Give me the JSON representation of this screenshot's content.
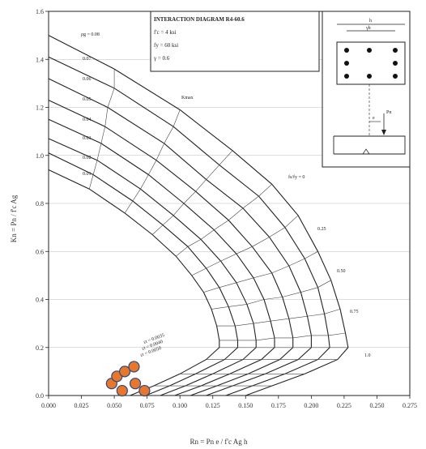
{
  "chart_data": {
    "type": "line",
    "title": "INTERACTION DIAGRAM R4-60.6",
    "legend_lines": [
      "f'c = 4 ksi",
      "fy = 60 ksi",
      "γ = 0.6"
    ],
    "xlabel": "Rn = Pn e / f'c Ag h",
    "ylabel": "Kn = Pn / f'c Ag",
    "x_ticks": [
      "0.000",
      "0.025",
      "0.050",
      "0.075",
      "0.100",
      "0.125",
      "0.150",
      "0.175",
      "0.200",
      "0.225",
      "0.250",
      "0.275"
    ],
    "y_ticks": [
      "0.0",
      "0.2",
      "0.4",
      "0.6",
      "0.8",
      "1.0",
      "1.2",
      "1.4",
      "1.6"
    ],
    "xlim": [
      0,
      0.275
    ],
    "ylim": [
      0,
      1.6
    ],
    "grid": true,
    "series": [
      {
        "name": "ρg = 0.08",
        "values": [
          [
            0,
            1.5
          ],
          [
            0.05,
            1.36
          ],
          [
            0.1,
            1.19
          ],
          [
            0.14,
            1.02
          ],
          [
            0.17,
            0.88
          ],
          [
            0.19,
            0.75
          ],
          [
            0.205,
            0.6
          ],
          [
            0.215,
            0.48
          ],
          [
            0.222,
            0.36
          ],
          [
            0.226,
            0.26
          ],
          [
            0.228,
            0.2
          ],
          [
            0.22,
            0.15
          ],
          [
            0.195,
            0.09
          ],
          [
            0.17,
            0.04
          ],
          [
            0.15,
            0
          ]
        ]
      },
      {
        "name": "",
        "values": [
          [
            0,
            1.41
          ],
          [
            0.05,
            1.28
          ],
          [
            0.095,
            1.12
          ],
          [
            0.13,
            0.96
          ],
          [
            0.16,
            0.83
          ],
          [
            0.18,
            0.7
          ],
          [
            0.195,
            0.57
          ],
          [
            0.205,
            0.45
          ],
          [
            0.21,
            0.34
          ],
          [
            0.213,
            0.25
          ],
          [
            0.214,
            0.2
          ],
          [
            0.205,
            0.15
          ],
          [
            0.18,
            0.09
          ],
          [
            0.155,
            0.04
          ],
          [
            0.135,
            0
          ]
        ]
      },
      {
        "name": "",
        "values": [
          [
            0,
            1.32
          ],
          [
            0.045,
            1.2
          ],
          [
            0.088,
            1.05
          ],
          [
            0.12,
            0.9
          ],
          [
            0.148,
            0.78
          ],
          [
            0.168,
            0.66
          ],
          [
            0.183,
            0.54
          ],
          [
            0.192,
            0.43
          ],
          [
            0.197,
            0.33
          ],
          [
            0.2,
            0.25
          ],
          [
            0.2,
            0.2
          ],
          [
            0.19,
            0.15
          ],
          [
            0.165,
            0.09
          ],
          [
            0.14,
            0.04
          ],
          [
            0.12,
            0
          ]
        ]
      },
      {
        "name": "",
        "values": [
          [
            0,
            1.23
          ],
          [
            0.043,
            1.12
          ],
          [
            0.082,
            0.98
          ],
          [
            0.112,
            0.85
          ],
          [
            0.137,
            0.73
          ],
          [
            0.155,
            0.62
          ],
          [
            0.17,
            0.51
          ],
          [
            0.178,
            0.41
          ],
          [
            0.183,
            0.32
          ],
          [
            0.186,
            0.24
          ],
          [
            0.186,
            0.2
          ],
          [
            0.176,
            0.15
          ],
          [
            0.152,
            0.09
          ],
          [
            0.128,
            0.04
          ],
          [
            0.108,
            0
          ]
        ]
      },
      {
        "name": "",
        "values": [
          [
            0,
            1.15
          ],
          [
            0.04,
            1.05
          ],
          [
            0.076,
            0.92
          ],
          [
            0.103,
            0.8
          ],
          [
            0.126,
            0.69
          ],
          [
            0.143,
            0.59
          ],
          [
            0.156,
            0.49
          ],
          [
            0.164,
            0.4
          ],
          [
            0.169,
            0.31
          ],
          [
            0.172,
            0.24
          ],
          [
            0.172,
            0.2
          ],
          [
            0.162,
            0.15
          ],
          [
            0.138,
            0.09
          ],
          [
            0.116,
            0.04
          ],
          [
            0.096,
            0
          ]
        ]
      },
      {
        "name": "",
        "values": [
          [
            0,
            1.07
          ],
          [
            0.037,
            0.98
          ],
          [
            0.07,
            0.86
          ],
          [
            0.095,
            0.75
          ],
          [
            0.116,
            0.65
          ],
          [
            0.131,
            0.56
          ],
          [
            0.143,
            0.47
          ],
          [
            0.151,
            0.38
          ],
          [
            0.156,
            0.3
          ],
          [
            0.158,
            0.23
          ],
          [
            0.158,
            0.2
          ],
          [
            0.148,
            0.15
          ],
          [
            0.125,
            0.09
          ],
          [
            0.104,
            0.04
          ],
          [
            0.085,
            0
          ]
        ]
      },
      {
        "name": "",
        "values": [
          [
            0,
            1.01
          ],
          [
            0.034,
            0.92
          ],
          [
            0.064,
            0.81
          ],
          [
            0.087,
            0.71
          ],
          [
            0.106,
            0.62
          ],
          [
            0.12,
            0.53
          ],
          [
            0.13,
            0.45
          ],
          [
            0.137,
            0.37
          ],
          [
            0.142,
            0.29
          ],
          [
            0.144,
            0.23
          ],
          [
            0.144,
            0.2
          ],
          [
            0.134,
            0.15
          ],
          [
            0.112,
            0.09
          ],
          [
            0.092,
            0.04
          ],
          [
            0.074,
            0
          ]
        ]
      },
      {
        "name": "ρg = 0.01",
        "values": [
          [
            0,
            0.94
          ],
          [
            0.031,
            0.86
          ],
          [
            0.058,
            0.76
          ],
          [
            0.079,
            0.67
          ],
          [
            0.097,
            0.58
          ],
          [
            0.109,
            0.5
          ],
          [
            0.118,
            0.43
          ],
          [
            0.124,
            0.36
          ],
          [
            0.128,
            0.29
          ],
          [
            0.13,
            0.23
          ],
          [
            0.13,
            0.2
          ],
          [
            0.12,
            0.15
          ],
          [
            0.1,
            0.09
          ],
          [
            0.08,
            0.04
          ],
          [
            0.062,
            0
          ]
        ]
      }
    ],
    "curve_labels": [
      "ρg = 0.08",
      "0.07",
      "0.06",
      "0.05",
      "0.04",
      "0.03",
      "0.02",
      "0.01"
    ],
    "ratio_labels": [
      "Kmax",
      "fs/fy = 0",
      "0.25",
      "0.50",
      "0.75",
      "1.0"
    ],
    "strain_labels": [
      "εt = 0.0035",
      "εt = 0.0040",
      "εt = 0.0050"
    ],
    "inset_labels": [
      "h",
      "γh",
      "e",
      "Pn"
    ],
    "markers": [
      [
        0.048,
        0.05
      ],
      [
        0.052,
        0.08
      ],
      [
        0.058,
        0.1
      ],
      [
        0.065,
        0.12
      ],
      [
        0.066,
        0.05
      ],
      [
        0.073,
        0.02
      ],
      [
        0.056,
        0.02
      ]
    ],
    "marker_color": "#e8772e"
  }
}
